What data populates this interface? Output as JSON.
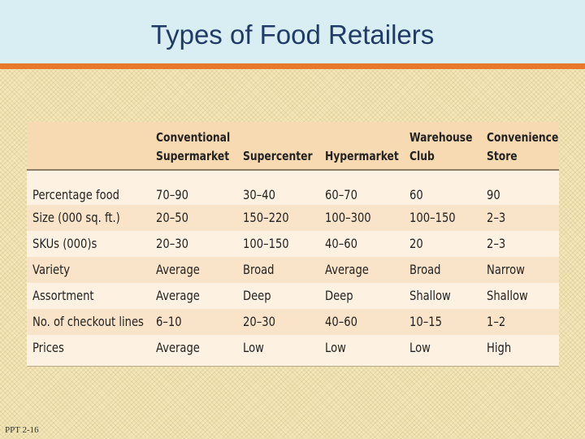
{
  "slide": {
    "title": "Types of Food Retailers",
    "footer": "PPT 2-16"
  },
  "table": {
    "headers": [
      [
        "",
        ""
      ],
      [
        "Conventional",
        "Supermarket"
      ],
      [
        "",
        "Supercenter"
      ],
      [
        "",
        "Hypermarket"
      ],
      [
        "Warehouse",
        "Club"
      ],
      [
        "Convenience",
        "Store"
      ]
    ],
    "rows": [
      [
        "Percentage food",
        "70–90",
        "30–40",
        "60–70",
        "60",
        "90"
      ],
      [
        "Size (000 sq. ft.)",
        "20–50",
        "150–220",
        "100–300",
        "100–150",
        "2–3"
      ],
      [
        "SKUs (000)s",
        "20–30",
        "100–150",
        "40–60",
        "20",
        "2–3"
      ],
      [
        "Variety",
        "Average",
        "Broad",
        "Average",
        "Broad",
        "Narrow"
      ],
      [
        "Assortment",
        "Average",
        "Deep",
        "Deep",
        "Shallow",
        "Shallow"
      ],
      [
        "No. of checkout lines",
        "6–10",
        "20–30",
        "40–60",
        "10–15",
        "1–2"
      ],
      [
        "Prices",
        "Average",
        "Low",
        "Low",
        "Low",
        "High"
      ]
    ]
  },
  "colors": {
    "header_band": "#d9eef3",
    "accent_bar": "#e8782c",
    "title_text": "#1f3b66",
    "table_header": "#f7d9b2"
  }
}
